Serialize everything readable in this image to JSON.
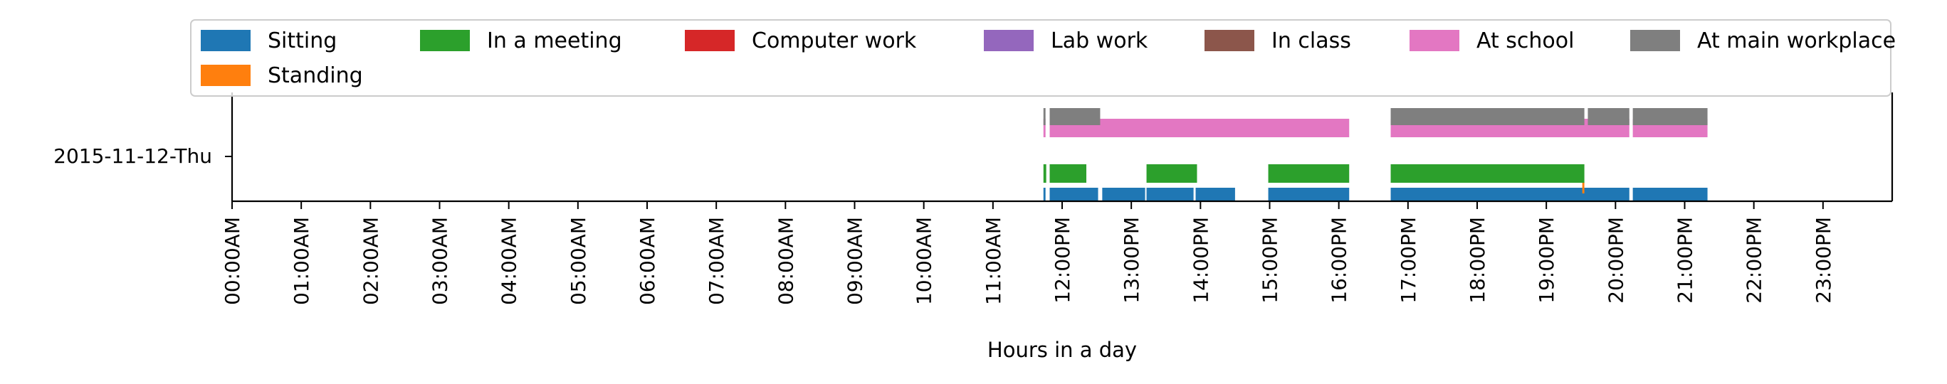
{
  "chart_data": {
    "type": "timeline",
    "title": "",
    "xlabel": "Hours in a day",
    "ylabel": "",
    "rows": [
      "2015-11-12-Thu"
    ],
    "xlim": [
      0,
      24
    ],
    "x_tick_labels": [
      "00:00AM",
      "01:00AM",
      "02:00AM",
      "03:00AM",
      "04:00AM",
      "05:00AM",
      "06:00AM",
      "07:00AM",
      "08:00AM",
      "09:00AM",
      "10:00AM",
      "11:00AM",
      "12:00PM",
      "13:00PM",
      "14:00PM",
      "15:00PM",
      "16:00PM",
      "17:00PM",
      "18:00PM",
      "19:00PM",
      "20:00PM",
      "21:00PM",
      "22:00PM",
      "23:00PM"
    ],
    "x_tick_values": [
      0,
      1,
      2,
      3,
      4,
      5,
      6,
      7,
      8,
      9,
      10,
      11,
      12,
      13,
      14,
      15,
      16,
      17,
      18,
      19,
      20,
      21,
      22,
      23
    ],
    "legend_position": "top",
    "series": [
      {
        "name": "Sitting",
        "color": "#1f77b4",
        "lane": 0,
        "intervals": [
          [
            11.73,
            11.76
          ],
          [
            11.82,
            12.52
          ],
          [
            12.58,
            13.2
          ],
          [
            13.22,
            13.9
          ],
          [
            13.93,
            14.5
          ],
          [
            14.98,
            16.15
          ],
          [
            16.75,
            20.2
          ],
          [
            20.25,
            21.33
          ]
        ]
      },
      {
        "name": "Standing",
        "color": "#ff7f0e",
        "lane": 1,
        "intervals": [
          [
            19.52,
            19.55
          ]
        ]
      },
      {
        "name": "In a meeting",
        "color": "#2ca02c",
        "lane": 2,
        "intervals": [
          [
            11.73,
            11.77
          ],
          [
            11.82,
            12.35
          ],
          [
            13.22,
            13.95
          ],
          [
            14.98,
            16.15
          ],
          [
            16.75,
            19.55
          ]
        ]
      },
      {
        "name": "Computer work",
        "color": "#d62728",
        "lane": 3,
        "intervals": []
      },
      {
        "name": "Lab work",
        "color": "#9467bd",
        "lane": 4,
        "intervals": []
      },
      {
        "name": "In class",
        "color": "#8c564b",
        "lane": 5,
        "intervals": []
      },
      {
        "name": "At school",
        "color": "#e377c2",
        "lane": 6,
        "intervals": [
          [
            11.73,
            11.76
          ],
          [
            11.82,
            16.15
          ],
          [
            16.75,
            20.2
          ],
          [
            20.25,
            21.33
          ]
        ]
      },
      {
        "name": "At main workplace",
        "color": "#7f7f7f",
        "lane": 7,
        "intervals": [
          [
            11.73,
            11.76
          ],
          [
            11.82,
            12.55
          ],
          [
            16.75,
            19.55
          ],
          [
            19.6,
            20.2
          ],
          [
            20.25,
            21.33
          ]
        ]
      }
    ],
    "legend": {
      "row1": [
        "Sitting",
        "In a meeting",
        "Computer work",
        "Lab work",
        "In class",
        "At school",
        "At main workplace"
      ],
      "row2": [
        "Standing"
      ]
    },
    "legend_colors": {
      "Sitting": "#1f77b4",
      "In a meeting": "#2ca02c",
      "Computer work": "#d62728",
      "Lab work": "#9467bd",
      "In class": "#8c564b",
      "At school": "#e377c2",
      "At main workplace": "#7f7f7f",
      "Standing": "#ff7f0e"
    }
  }
}
